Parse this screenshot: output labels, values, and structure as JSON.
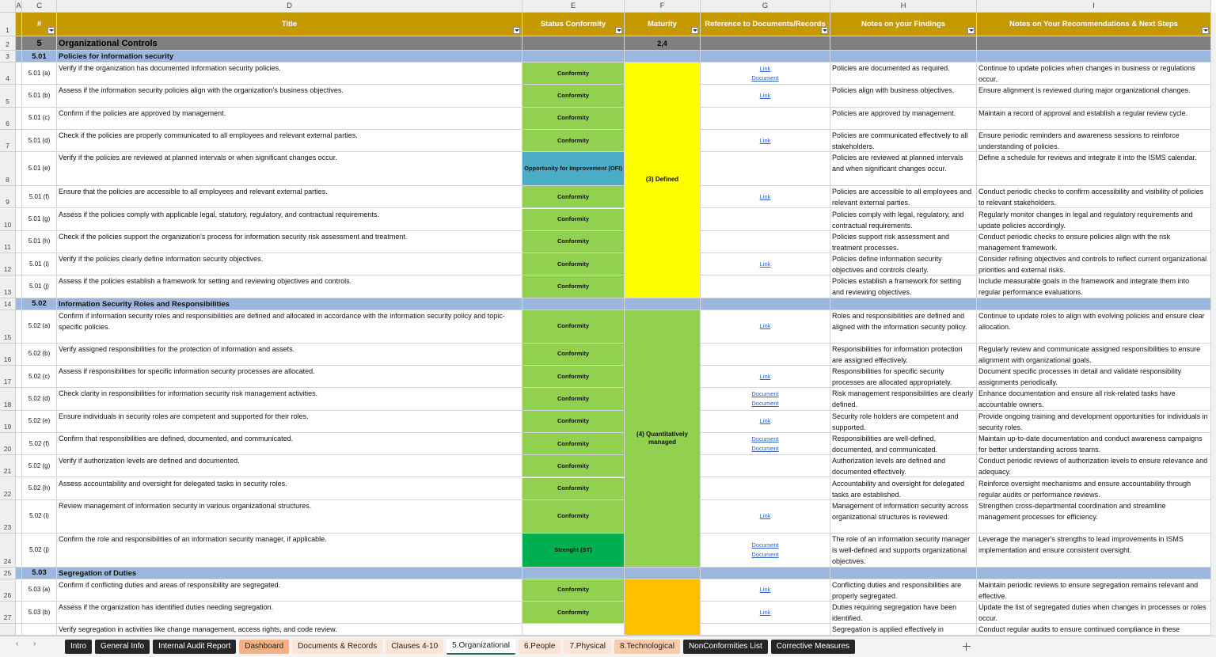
{
  "column_letters": [
    "A",
    "C",
    "D",
    "E",
    "F",
    "G",
    "H",
    "I"
  ],
  "headers": [
    "#",
    "Title",
    "Status Conformity",
    "Maturity",
    "Reference to Documents/Records",
    "Notes on your Findings",
    "Notes on Your Recommendations & Next Steps"
  ],
  "row_numbers": [
    1,
    2,
    3,
    4,
    5,
    6,
    7,
    8,
    9,
    10,
    11,
    12,
    13,
    14,
    15,
    16,
    17,
    18,
    19,
    20,
    21,
    22,
    23,
    24,
    25,
    26,
    27
  ],
  "group": {
    "number": "5",
    "title": "Organizational Controls",
    "maturity": "2,4"
  },
  "sections": [
    {
      "id": "5.01",
      "title": "Policies for information security",
      "maturity": "(3) Defined",
      "maturity_color": "#ffff00",
      "rows": [
        {
          "id": "5.01 (a)",
          "title": "Verify if the organization has documented information security policies.",
          "status": "Conformity",
          "color": "#92d050",
          "refs": [
            "Link",
            "Document"
          ],
          "findings": "Policies are documented as required.",
          "recommendations": "Continue to update policies when changes in business or regulations occur."
        },
        {
          "id": "5.01 (b)",
          "title": "Assess if the information security policies align with the organization's business objectives.",
          "status": "Conformity",
          "color": "#92d050",
          "refs": [
            "Link"
          ],
          "findings": "Policies align with business objectives.",
          "recommendations": "Ensure alignment is reviewed during major organizational changes."
        },
        {
          "id": "5.01 (c)",
          "title": "Confirm if the policies are approved by management.",
          "status": "Conformity",
          "color": "#92d050",
          "refs": [],
          "findings": "Policies are approved by management.",
          "recommendations": "Maintain a record of approval and establish a regular review cycle."
        },
        {
          "id": "5.01 (d)",
          "title": "Check if the policies are properly communicated to all employees and relevant external parties.",
          "status": "Conformity",
          "color": "#92d050",
          "refs": [
            "Link"
          ],
          "findings": "Policies are communicated effectively to all stakeholders.",
          "recommendations": "Ensure periodic reminders and awareness sessions to reinforce understanding of policies."
        },
        {
          "id": "5.01 (e)",
          "title": "Verify if the policies are reviewed at planned intervals or when significant changes occur.",
          "status": "Opportunity for Improvement (OFI)",
          "color": "#4bacc6",
          "refs": [],
          "findings": "Policies are reviewed at planned intervals and when significant changes occur.",
          "recommendations": "Define a schedule for reviews and integrate it into the ISMS calendar."
        },
        {
          "id": "5.01 (f)",
          "title": "Ensure that the policies are accessible to all employees and relevant external parties.",
          "status": "Conformity",
          "color": "#92d050",
          "refs": [
            "Link"
          ],
          "findings": "Policies are accessible to all employees and relevant external parties.",
          "recommendations": "Conduct periodic checks to confirm accessibility and visibility of policies to relevant stakeholders."
        },
        {
          "id": "5.01 (g)",
          "title": "Assess if the policies comply with applicable legal, statutory, regulatory, and contractual requirements.",
          "status": "Conformity",
          "color": "#92d050",
          "refs": [],
          "findings": "Policies comply with legal, regulatory, and contractual requirements.",
          "recommendations": "Regularly monitor changes in legal and regulatory requirements and update policies accordingly."
        },
        {
          "id": "5.01 (h)",
          "title": "Check if the policies support the organization's process for information security risk assessment and treatment.",
          "status": "Conformity",
          "color": "#92d050",
          "refs": [],
          "findings": "Policies support risk assessment and treatment processes.",
          "recommendations": "Conduct periodic checks to ensure policies align with the risk management framework."
        },
        {
          "id": "5.01 (i)",
          "title": "Verify if the policies clearly define information security objectives.",
          "status": "Conformity",
          "color": "#92d050",
          "refs": [
            "Link"
          ],
          "findings": "Policies define information security objectives and controls clearly.",
          "recommendations": "Consider refining objectives and controls to reflect current organizational priorities and external risks."
        },
        {
          "id": "5.01 (j)",
          "title": "Assess if the policies establish a framework for setting and reviewing objectives and controls.",
          "status": "Conformity",
          "color": "#92d050",
          "refs": [],
          "findings": "Policies establish a framework for setting and reviewing objectives.",
          "recommendations": "Include measurable goals in the framework and integrate them into regular performance evaluations."
        }
      ]
    },
    {
      "id": "5.02",
      "title": "Information Security Roles and Responsibilities",
      "maturity": "(4) Quantitatively managed",
      "maturity_color": "#92d050",
      "rows": [
        {
          "id": "5.02 (a)",
          "title": "Confirm if information security roles and responsibilities are defined and allocated in accordance with the information security policy and topic-specific policies.",
          "status": "Conformity",
          "color": "#92d050",
          "refs": [
            "Link"
          ],
          "findings": "Roles and responsibilities are defined and aligned with the information security policy.",
          "recommendations": "Continue to update roles to align with evolving policies and ensure clear allocation."
        },
        {
          "id": "5.02 (b)",
          "title": "Verify assigned responsibilities for the protection of information and assets.",
          "status": "Conformity",
          "color": "#92d050",
          "refs": [],
          "findings": "Responsibilities for information protection are assigned effectively.",
          "recommendations": "Regularly review and communicate assigned responsibilities to ensure alignment with organizational goals."
        },
        {
          "id": "5.02 (c)",
          "title": "Assess if responsibilities for specific information security processes are allocated.",
          "status": "Conformity",
          "color": "#92d050",
          "refs": [
            "Link"
          ],
          "findings": "Responsibilities for specific security processes are allocated appropriately.",
          "recommendations": "Document specific processes in detail and validate responsibility assignments periodically."
        },
        {
          "id": "5.02 (d)",
          "title": "Check clarity in responsibilities for information security risk management activities.",
          "status": "Conformity",
          "color": "#92d050",
          "refs": [
            "Document",
            "Document"
          ],
          "findings": "Risk management responsibilities are clearly defined.",
          "recommendations": "Enhance documentation and ensure all risk-related tasks have accountable owners."
        },
        {
          "id": "5.02 (e)",
          "title": "Ensure individuals in security roles are competent and supported for their roles.",
          "status": "Conformity",
          "color": "#92d050",
          "refs": [
            "Link"
          ],
          "findings": "Security role holders are competent and supported.",
          "recommendations": "Provide ongoing training and development opportunities for individuals in security roles."
        },
        {
          "id": "5.02 (f)",
          "title": "Confirm that responsibilities are defined, documented, and communicated.",
          "status": "Conformity",
          "color": "#92d050",
          "refs": [
            "Document",
            "Document"
          ],
          "findings": "Responsibilities are well-defined, documented, and communicated.",
          "recommendations": "Maintain up-to-date documentation and conduct awareness campaigns for better understanding across teams."
        },
        {
          "id": "5.02 (g)",
          "title": "Verify if authorization levels are defined and documented.",
          "status": "Conformity",
          "color": "#92d050",
          "refs": [],
          "findings": "Authorization levels are defined and documented effectively.",
          "recommendations": "Conduct periodic reviews of authorization levels to ensure relevance and adequacy."
        },
        {
          "id": "5.02 (h)",
          "title": "Assess accountability and oversight for delegated tasks in security roles.",
          "status": "Conformity",
          "color": "#92d050",
          "refs": [],
          "findings": "Accountability and oversight for delegated tasks are established.",
          "recommendations": "Reinforce oversight mechanisms and ensure accountability through regular audits or performance reviews."
        },
        {
          "id": "5.02 (i)",
          "title": "Review management of information security in various organizational structures.",
          "status": "Conformity",
          "color": "#92d050",
          "refs": [
            "Link"
          ],
          "findings": "Management of information security across organizational structures is reviewed.",
          "recommendations": "Strengthen cross-departmental coordination and streamline management processes for efficiency."
        },
        {
          "id": "5.02 (j)",
          "title": "Confirm the role and responsibilities of an information security manager, if applicable.",
          "status": "Strenght (ST)",
          "color": "#00b050",
          "refs": [
            "Document",
            "Document"
          ],
          "findings": "The role of an information security manager is well-defined and supports organizational objectives.",
          "recommendations": "Leverage the manager's strengths to lead improvements in ISMS implementation and ensure consistent oversight."
        }
      ]
    },
    {
      "id": "5.03",
      "title": "Segregation of Duties",
      "maturity_color": "#ffc000",
      "rows": [
        {
          "id": "5.03 (a)",
          "title": "Confirm if conflicting duties and areas of responsibility are segregated.",
          "status": "Conformity",
          "color": "#92d050",
          "refs": [
            "Link"
          ],
          "findings": "Conflicting duties and responsibilities are properly segregated.",
          "recommendations": "Maintain periodic reviews to ensure segregation remains relevant and effective."
        },
        {
          "id": "5.03 (b)",
          "title": "Assess if the organization has identified duties needing segregation.",
          "status": "Conformity",
          "color": "#92d050",
          "refs": [
            "Link"
          ],
          "findings": "Duties requiring segregation have been identified.",
          "recommendations": "Update the list of segregated duties when changes in processes or roles occur."
        },
        {
          "title": "Verify segregation in activities like change management, access rights, and code review.",
          "findings": "Segregation is applied effectively in",
          "recommendations": "Conduct regular audits to ensure continued compliance in these"
        }
      ]
    }
  ],
  "tabs": [
    {
      "label": "Intro",
      "color": "#262626",
      "text": "#fff"
    },
    {
      "label": "General Info",
      "color": "#262626",
      "text": "#fff"
    },
    {
      "label": "Internal Audit Report",
      "color": "#262626",
      "text": "#fff"
    },
    {
      "label": "Dashboard",
      "color": "#f4b183",
      "text": "#222"
    },
    {
      "label": "Documents & Records",
      "color": "#fbe5d6",
      "text": "#222"
    },
    {
      "label": "Clauses 4-10",
      "color": "#fbe5d6",
      "text": "#222"
    },
    {
      "label": "5.Organizational",
      "color": "#ffffff",
      "text": "#222",
      "active": true
    },
    {
      "label": "6.People",
      "color": "#fbe5d6",
      "text": "#222"
    },
    {
      "label": "7.Physical",
      "color": "#fbe5d6",
      "text": "#222"
    },
    {
      "label": "8.Technological",
      "color": "#f8cbad",
      "text": "#222"
    },
    {
      "label": "NonConformities List",
      "color": "#262626",
      "text": "#fff"
    },
    {
      "label": "Corrective Measures",
      "color": "#262626",
      "text": "#fff"
    }
  ]
}
